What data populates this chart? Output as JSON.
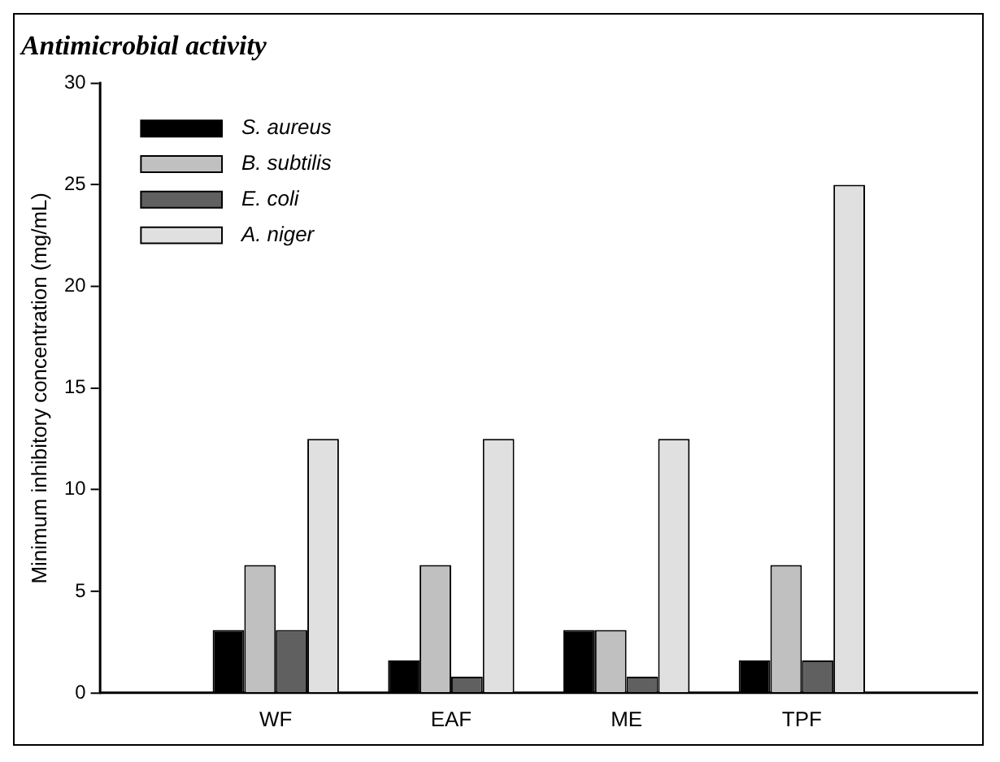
{
  "chart_data": {
    "type": "bar",
    "title": "Antimicrobial activity",
    "ylabel": "Minimum inhibitory concentration (mg/mL)",
    "categories": [
      null,
      "WF",
      "EAF",
      "ME",
      "TPF",
      null
    ],
    "series": [
      {
        "name": "S. aureus",
        "color": "#000000",
        "values": [
          null,
          3.1,
          1.6,
          3.1,
          1.6,
          null
        ]
      },
      {
        "name": "B. subtilis",
        "color": "#c0c0c0",
        "values": [
          null,
          6.3,
          6.3,
          3.1,
          6.3,
          null
        ]
      },
      {
        "name": "E. coli",
        "color": "#606060",
        "values": [
          null,
          3.1,
          0.8,
          0.8,
          1.6,
          null
        ]
      },
      {
        "name": "A. niger",
        "color": "#e0e0e0",
        "values": [
          null,
          12.5,
          12.5,
          12.5,
          25,
          null
        ]
      }
    ],
    "ylim": [
      0,
      30
    ],
    "yticks": [
      0,
      5,
      10,
      15,
      20,
      25,
      30
    ],
    "grid": false,
    "legend": "top left"
  }
}
